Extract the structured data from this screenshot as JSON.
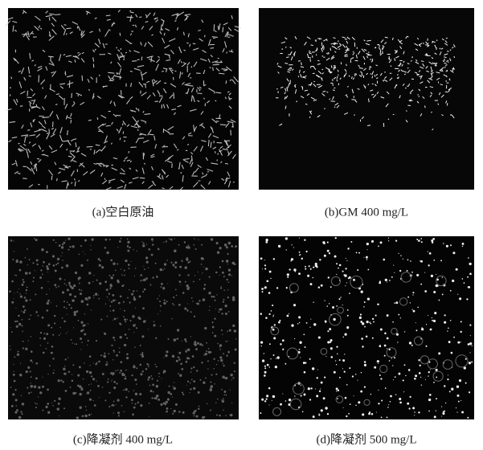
{
  "panels": [
    {
      "caption": "(a)空白原油"
    },
    {
      "caption": "(b)GM 400 mg/L"
    },
    {
      "caption": "(c)降凝剂 400 mg/L"
    },
    {
      "caption": "(d)降凝剂 500 mg/L"
    }
  ]
}
